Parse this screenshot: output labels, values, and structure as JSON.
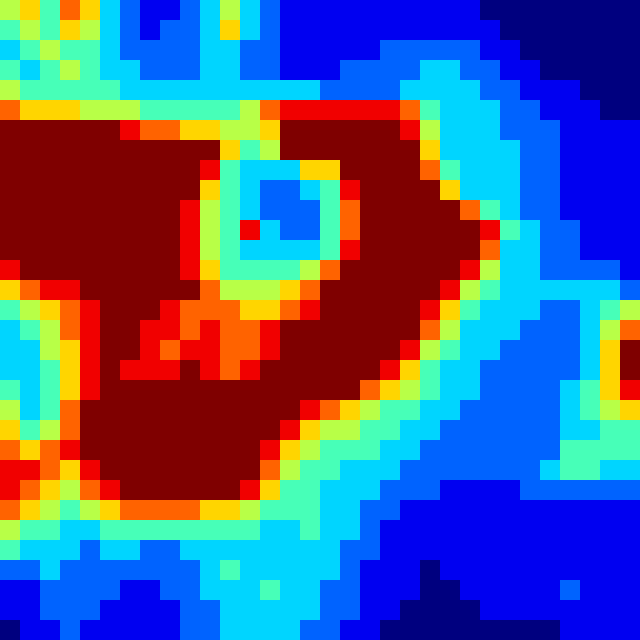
{
  "chart_data": {
    "type": "heatmap",
    "color": "jet",
    "zlim": [
      0,
      9
    ],
    "tick_labels": false,
    "cells": [
      [
        5,
        6,
        4,
        7,
        6,
        3,
        2,
        1,
        1,
        2,
        3,
        5,
        3,
        2,
        1,
        1,
        1,
        1,
        1,
        1,
        1,
        1,
        1,
        1,
        0,
        0,
        0,
        0,
        0,
        0,
        0,
        0
      ],
      [
        4,
        5,
        4,
        6,
        5,
        3,
        2,
        1,
        2,
        2,
        3,
        6,
        3,
        2,
        1,
        1,
        1,
        1,
        1,
        1,
        1,
        1,
        1,
        1,
        1,
        0,
        0,
        0,
        0,
        0,
        0,
        0
      ],
      [
        3,
        4,
        5,
        4,
        4,
        3,
        2,
        2,
        2,
        2,
        3,
        3,
        2,
        2,
        1,
        1,
        1,
        1,
        1,
        2,
        2,
        2,
        2,
        2,
        1,
        1,
        0,
        0,
        0,
        0,
        0,
        0
      ],
      [
        4,
        3,
        4,
        5,
        4,
        3,
        3,
        2,
        2,
        2,
        3,
        3,
        2,
        2,
        1,
        1,
        1,
        2,
        2,
        2,
        2,
        3,
        3,
        2,
        2,
        1,
        1,
        0,
        0,
        0,
        0,
        0
      ],
      [
        5,
        4,
        4,
        4,
        4,
        4,
        3,
        3,
        3,
        3,
        3,
        3,
        3,
        3,
        3,
        3,
        2,
        2,
        2,
        2,
        3,
        3,
        3,
        3,
        2,
        2,
        1,
        1,
        1,
        0,
        0,
        0
      ],
      [
        7,
        6,
        6,
        6,
        5,
        5,
        5,
        4,
        4,
        4,
        4,
        4,
        5,
        7,
        8,
        8,
        8,
        8,
        8,
        8,
        7,
        4,
        3,
        3,
        3,
        2,
        2,
        1,
        1,
        1,
        0,
        0
      ],
      [
        9,
        9,
        9,
        9,
        9,
        9,
        8,
        7,
        7,
        6,
        6,
        5,
        5,
        6,
        9,
        9,
        9,
        9,
        9,
        9,
        8,
        5,
        3,
        3,
        3,
        2,
        2,
        2,
        1,
        1,
        1,
        1
      ],
      [
        9,
        9,
        9,
        9,
        9,
        9,
        9,
        9,
        9,
        9,
        9,
        6,
        4,
        5,
        9,
        9,
        9,
        9,
        9,
        9,
        9,
        6,
        3,
        3,
        3,
        3,
        2,
        2,
        1,
        1,
        1,
        1
      ],
      [
        9,
        9,
        9,
        9,
        9,
        9,
        9,
        9,
        9,
        9,
        8,
        4,
        3,
        3,
        3,
        6,
        6,
        9,
        9,
        9,
        9,
        7,
        4,
        3,
        3,
        3,
        2,
        2,
        1,
        1,
        1,
        1
      ],
      [
        9,
        9,
        9,
        9,
        9,
        9,
        9,
        9,
        9,
        9,
        6,
        4,
        3,
        2,
        2,
        3,
        4,
        8,
        9,
        9,
        9,
        9,
        6,
        3,
        3,
        3,
        2,
        2,
        1,
        1,
        1,
        1
      ],
      [
        9,
        9,
        9,
        9,
        9,
        9,
        9,
        9,
        9,
        8,
        5,
        4,
        3,
        2,
        2,
        2,
        4,
        7,
        9,
        9,
        9,
        9,
        9,
        7,
        4,
        3,
        2,
        2,
        1,
        1,
        1,
        1
      ],
      [
        9,
        9,
        9,
        9,
        9,
        9,
        9,
        9,
        9,
        8,
        5,
        4,
        8,
        3,
        2,
        2,
        4,
        7,
        9,
        9,
        9,
        9,
        9,
        9,
        8,
        4,
        3,
        2,
        2,
        1,
        1,
        1
      ],
      [
        9,
        9,
        9,
        9,
        9,
        9,
        9,
        9,
        9,
        8,
        5,
        4,
        3,
        3,
        3,
        3,
        4,
        8,
        9,
        9,
        9,
        9,
        9,
        9,
        7,
        3,
        3,
        2,
        2,
        1,
        1,
        1
      ],
      [
        8,
        9,
        9,
        9,
        9,
        9,
        9,
        9,
        9,
        8,
        6,
        4,
        4,
        4,
        4,
        5,
        7,
        9,
        9,
        9,
        9,
        9,
        9,
        8,
        5,
        3,
        3,
        2,
        2,
        2,
        2,
        1
      ],
      [
        6,
        7,
        8,
        8,
        9,
        9,
        9,
        9,
        9,
        9,
        7,
        5,
        5,
        5,
        6,
        7,
        9,
        9,
        9,
        9,
        9,
        9,
        8,
        5,
        4,
        3,
        3,
        3,
        3,
        3,
        3,
        2
      ],
      [
        4,
        5,
        6,
        7,
        8,
        9,
        9,
        9,
        8,
        7,
        7,
        7,
        6,
        6,
        7,
        8,
        9,
        9,
        9,
        9,
        9,
        8,
        6,
        4,
        3,
        3,
        3,
        2,
        2,
        3,
        4,
        5
      ],
      [
        3,
        4,
        5,
        7,
        8,
        9,
        9,
        8,
        8,
        7,
        8,
        7,
        7,
        8,
        9,
        9,
        9,
        9,
        9,
        9,
        9,
        7,
        5,
        3,
        3,
        3,
        2,
        2,
        2,
        3,
        5,
        7
      ],
      [
        3,
        3,
        5,
        6,
        8,
        9,
        9,
        8,
        7,
        8,
        8,
        7,
        7,
        8,
        9,
        9,
        9,
        9,
        9,
        9,
        8,
        5,
        4,
        3,
        3,
        2,
        2,
        2,
        2,
        3,
        6,
        9
      ],
      [
        3,
        3,
        4,
        6,
        8,
        9,
        8,
        8,
        8,
        9,
        8,
        7,
        8,
        9,
        9,
        9,
        9,
        9,
        9,
        8,
        6,
        4,
        3,
        3,
        2,
        2,
        2,
        2,
        2,
        3,
        6,
        9
      ],
      [
        4,
        3,
        4,
        6,
        8,
        9,
        9,
        9,
        9,
        9,
        9,
        9,
        9,
        9,
        9,
        9,
        9,
        9,
        7,
        6,
        5,
        4,
        3,
        3,
        2,
        2,
        2,
        2,
        3,
        4,
        6,
        8
      ],
      [
        5,
        3,
        4,
        7,
        9,
        9,
        9,
        9,
        9,
        9,
        9,
        9,
        9,
        9,
        9,
        8,
        7,
        6,
        5,
        4,
        4,
        3,
        3,
        2,
        2,
        2,
        2,
        2,
        3,
        4,
        5,
        6
      ],
      [
        6,
        4,
        5,
        7,
        9,
        9,
        9,
        9,
        9,
        9,
        9,
        9,
        9,
        9,
        8,
        6,
        5,
        5,
        4,
        4,
        3,
        3,
        2,
        2,
        2,
        2,
        2,
        2,
        3,
        3,
        4,
        4
      ],
      [
        7,
        6,
        7,
        8,
        9,
        9,
        9,
        9,
        9,
        9,
        9,
        9,
        9,
        8,
        6,
        5,
        4,
        4,
        4,
        3,
        3,
        2,
        2,
        2,
        2,
        2,
        2,
        2,
        4,
        4,
        4,
        4
      ],
      [
        8,
        8,
        7,
        6,
        8,
        9,
        9,
        9,
        9,
        9,
        9,
        9,
        9,
        7,
        5,
        4,
        4,
        3,
        3,
        3,
        2,
        2,
        2,
        2,
        2,
        2,
        2,
        3,
        4,
        4,
        3,
        3
      ],
      [
        8,
        7,
        6,
        5,
        7,
        8,
        9,
        9,
        9,
        9,
        9,
        9,
        8,
        6,
        4,
        4,
        3,
        3,
        3,
        2,
        2,
        2,
        1,
        1,
        1,
        1,
        2,
        2,
        2,
        2,
        2,
        2
      ],
      [
        7,
        6,
        5,
        4,
        5,
        6,
        7,
        7,
        7,
        7,
        6,
        6,
        5,
        4,
        4,
        4,
        3,
        3,
        2,
        2,
        1,
        1,
        1,
        1,
        1,
        1,
        1,
        1,
        1,
        1,
        1,
        1
      ],
      [
        5,
        4,
        4,
        3,
        3,
        4,
        4,
        4,
        4,
        4,
        4,
        4,
        4,
        3,
        3,
        4,
        3,
        3,
        2,
        1,
        1,
        1,
        1,
        1,
        1,
        1,
        1,
        1,
        1,
        1,
        1,
        1
      ],
      [
        4,
        3,
        3,
        3,
        2,
        3,
        3,
        2,
        2,
        3,
        3,
        3,
        3,
        3,
        3,
        3,
        3,
        2,
        2,
        1,
        1,
        1,
        1,
        1,
        1,
        1,
        1,
        1,
        1,
        1,
        1,
        1
      ],
      [
        2,
        2,
        3,
        2,
        2,
        2,
        2,
        2,
        2,
        2,
        3,
        4,
        3,
        3,
        3,
        3,
        3,
        2,
        1,
        1,
        1,
        0,
        1,
        1,
        1,
        1,
        1,
        1,
        1,
        1,
        1,
        1
      ],
      [
        1,
        1,
        2,
        2,
        2,
        2,
        1,
        1,
        2,
        2,
        3,
        3,
        3,
        4,
        3,
        3,
        2,
        2,
        1,
        1,
        1,
        0,
        0,
        1,
        1,
        1,
        1,
        1,
        2,
        1,
        1,
        1
      ],
      [
        1,
        1,
        2,
        2,
        2,
        1,
        1,
        1,
        1,
        2,
        2,
        3,
        3,
        3,
        3,
        3,
        2,
        2,
        1,
        1,
        0,
        0,
        0,
        0,
        1,
        1,
        1,
        1,
        1,
        1,
        1,
        1
      ],
      [
        0,
        1,
        1,
        2,
        1,
        1,
        1,
        1,
        1,
        2,
        2,
        3,
        3,
        3,
        3,
        2,
        2,
        1,
        1,
        0,
        0,
        0,
        0,
        0,
        0,
        0,
        0,
        0,
        1,
        1,
        1,
        1
      ]
    ]
  }
}
